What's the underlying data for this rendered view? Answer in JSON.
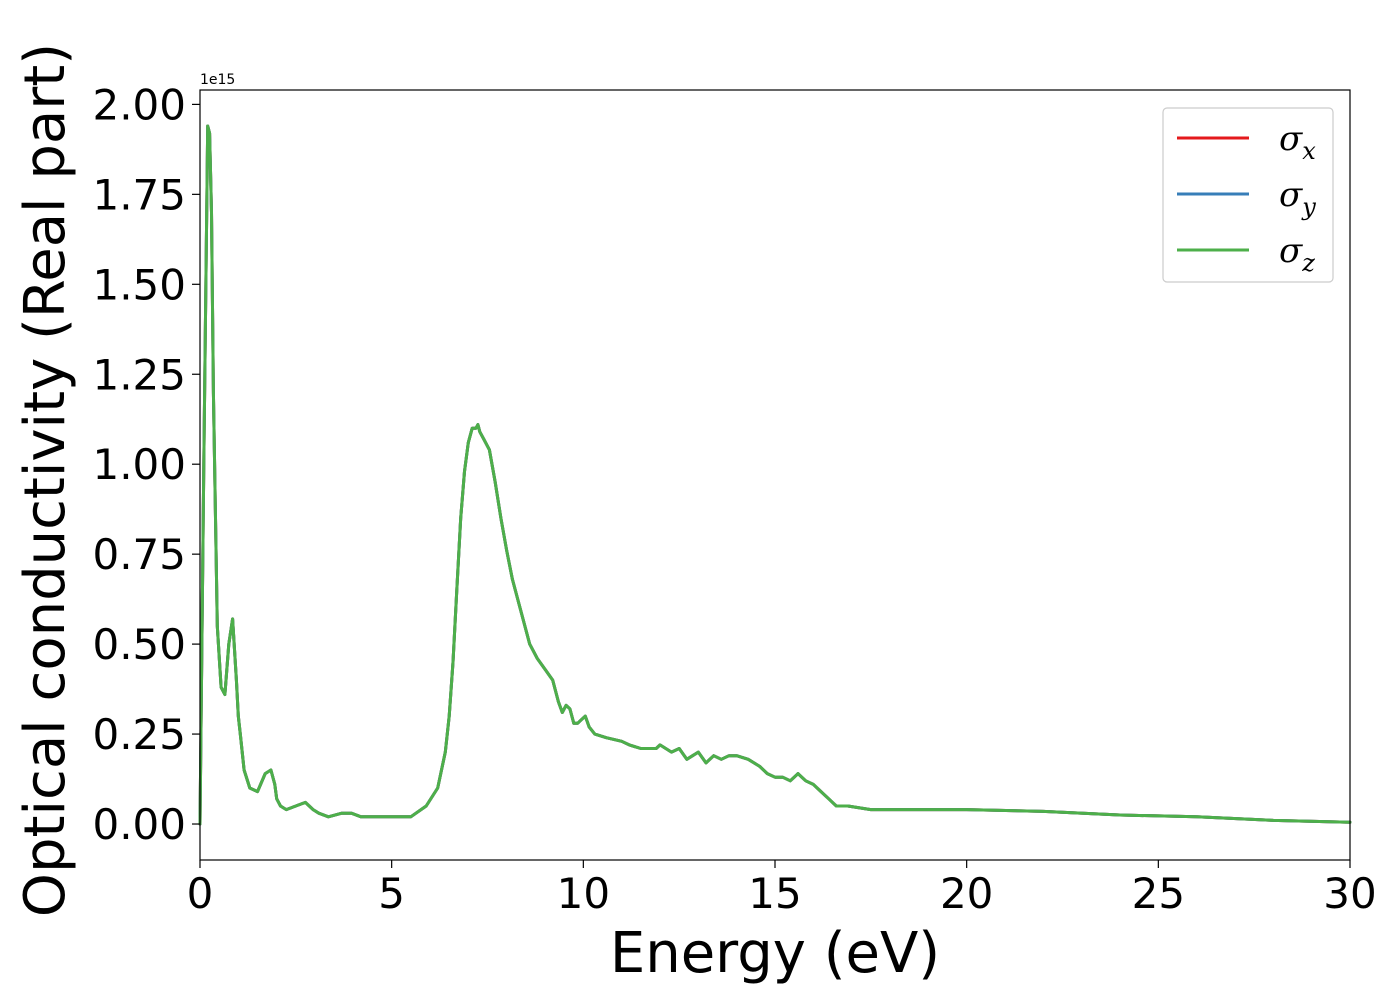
{
  "chart_data": {
    "type": "line",
    "title": "",
    "xlabel": "Energy (eV)",
    "ylabel": "Optical conductivity (Real part)",
    "y_offset_label": "1e15",
    "xlim": [
      0,
      30
    ],
    "ylim": [
      -0.1,
      2.04
    ],
    "x_ticks": [
      0,
      5,
      10,
      15,
      20,
      25,
      30
    ],
    "x_tick_labels": [
      "0",
      "5",
      "10",
      "15",
      "20",
      "25",
      "30"
    ],
    "y_ticks": [
      0.0,
      0.25,
      0.5,
      0.75,
      1.0,
      1.25,
      1.5,
      1.75,
      2.0
    ],
    "y_tick_labels": [
      "0.00",
      "0.25",
      "0.50",
      "0.75",
      "1.00",
      "1.25",
      "1.50",
      "1.75",
      "2.00"
    ],
    "grid": false,
    "legend_position": "top-right",
    "x": [
      0.0,
      0.1,
      0.2,
      0.25,
      0.3,
      0.35,
      0.45,
      0.55,
      0.65,
      0.75,
      0.85,
      0.95,
      1.0,
      1.05,
      1.15,
      1.3,
      1.5,
      1.7,
      1.85,
      1.95,
      2.0,
      2.1,
      2.25,
      2.5,
      2.75,
      2.95,
      3.1,
      3.35,
      3.7,
      3.95,
      4.2,
      4.6,
      5.0,
      5.5,
      5.9,
      6.2,
      6.4,
      6.5,
      6.6,
      6.7,
      6.8,
      6.9,
      7.0,
      7.1,
      7.2,
      7.25,
      7.3,
      7.4,
      7.55,
      7.7,
      7.85,
      8.0,
      8.15,
      8.35,
      8.6,
      8.8,
      9.0,
      9.2,
      9.35,
      9.45,
      9.55,
      9.65,
      9.75,
      9.85,
      9.95,
      10.05,
      10.15,
      10.3,
      10.6,
      11.0,
      11.2,
      11.5,
      11.9,
      12.0,
      12.3,
      12.5,
      12.7,
      12.85,
      13.0,
      13.2,
      13.4,
      13.6,
      13.8,
      14.0,
      14.3,
      14.6,
      14.8,
      15.0,
      15.2,
      15.4,
      15.6,
      15.8,
      16.0,
      16.2,
      16.4,
      16.6,
      16.9,
      17.5,
      18.5,
      20.0,
      22.0,
      24.0,
      26.0,
      28.0,
      30.0
    ],
    "series": [
      {
        "name": "σx",
        "color": "#e41a1c",
        "values": [
          0.0,
          1.0,
          1.94,
          1.92,
          1.7,
          1.2,
          0.55,
          0.38,
          0.36,
          0.5,
          0.57,
          0.4,
          0.3,
          0.25,
          0.15,
          0.1,
          0.09,
          0.14,
          0.15,
          0.11,
          0.07,
          0.05,
          0.04,
          0.05,
          0.06,
          0.04,
          0.03,
          0.02,
          0.03,
          0.03,
          0.02,
          0.02,
          0.02,
          0.02,
          0.05,
          0.1,
          0.2,
          0.3,
          0.45,
          0.65,
          0.85,
          0.98,
          1.06,
          1.1,
          1.1,
          1.11,
          1.09,
          1.07,
          1.04,
          0.95,
          0.85,
          0.76,
          0.68,
          0.6,
          0.5,
          0.46,
          0.43,
          0.4,
          0.34,
          0.31,
          0.33,
          0.32,
          0.28,
          0.28,
          0.29,
          0.3,
          0.27,
          0.25,
          0.24,
          0.23,
          0.22,
          0.21,
          0.21,
          0.22,
          0.2,
          0.21,
          0.18,
          0.19,
          0.2,
          0.17,
          0.19,
          0.18,
          0.19,
          0.19,
          0.18,
          0.16,
          0.14,
          0.13,
          0.13,
          0.12,
          0.14,
          0.12,
          0.11,
          0.09,
          0.07,
          0.05,
          0.05,
          0.04,
          0.04,
          0.04,
          0.035,
          0.025,
          0.02,
          0.01,
          0.005
        ]
      },
      {
        "name": "σy",
        "color": "#377eb8",
        "values": [
          0.0,
          1.0,
          1.94,
          1.92,
          1.7,
          1.2,
          0.55,
          0.38,
          0.36,
          0.5,
          0.57,
          0.4,
          0.3,
          0.25,
          0.15,
          0.1,
          0.09,
          0.14,
          0.15,
          0.11,
          0.07,
          0.05,
          0.04,
          0.05,
          0.06,
          0.04,
          0.03,
          0.02,
          0.03,
          0.03,
          0.02,
          0.02,
          0.02,
          0.02,
          0.05,
          0.1,
          0.2,
          0.3,
          0.45,
          0.65,
          0.85,
          0.98,
          1.06,
          1.1,
          1.1,
          1.11,
          1.09,
          1.07,
          1.04,
          0.95,
          0.85,
          0.76,
          0.68,
          0.6,
          0.5,
          0.46,
          0.43,
          0.4,
          0.34,
          0.31,
          0.33,
          0.32,
          0.28,
          0.28,
          0.29,
          0.3,
          0.27,
          0.25,
          0.24,
          0.23,
          0.22,
          0.21,
          0.21,
          0.22,
          0.2,
          0.21,
          0.18,
          0.19,
          0.2,
          0.17,
          0.19,
          0.18,
          0.19,
          0.19,
          0.18,
          0.16,
          0.14,
          0.13,
          0.13,
          0.12,
          0.14,
          0.12,
          0.11,
          0.09,
          0.07,
          0.05,
          0.05,
          0.04,
          0.04,
          0.04,
          0.035,
          0.025,
          0.02,
          0.01,
          0.005
        ]
      },
      {
        "name": "σz",
        "color": "#4daf4a",
        "values": [
          0.0,
          1.0,
          1.94,
          1.92,
          1.7,
          1.2,
          0.55,
          0.38,
          0.36,
          0.5,
          0.57,
          0.4,
          0.3,
          0.25,
          0.15,
          0.1,
          0.09,
          0.14,
          0.15,
          0.11,
          0.07,
          0.05,
          0.04,
          0.05,
          0.06,
          0.04,
          0.03,
          0.02,
          0.03,
          0.03,
          0.02,
          0.02,
          0.02,
          0.02,
          0.05,
          0.1,
          0.2,
          0.3,
          0.45,
          0.65,
          0.85,
          0.98,
          1.06,
          1.1,
          1.1,
          1.11,
          1.09,
          1.07,
          1.04,
          0.95,
          0.85,
          0.76,
          0.68,
          0.6,
          0.5,
          0.46,
          0.43,
          0.4,
          0.34,
          0.31,
          0.33,
          0.32,
          0.28,
          0.28,
          0.29,
          0.3,
          0.27,
          0.25,
          0.24,
          0.23,
          0.22,
          0.21,
          0.21,
          0.22,
          0.2,
          0.21,
          0.18,
          0.19,
          0.2,
          0.17,
          0.19,
          0.18,
          0.19,
          0.19,
          0.18,
          0.16,
          0.14,
          0.13,
          0.13,
          0.12,
          0.14,
          0.12,
          0.11,
          0.09,
          0.07,
          0.05,
          0.05,
          0.04,
          0.04,
          0.04,
          0.035,
          0.025,
          0.02,
          0.01,
          0.005
        ]
      }
    ]
  }
}
